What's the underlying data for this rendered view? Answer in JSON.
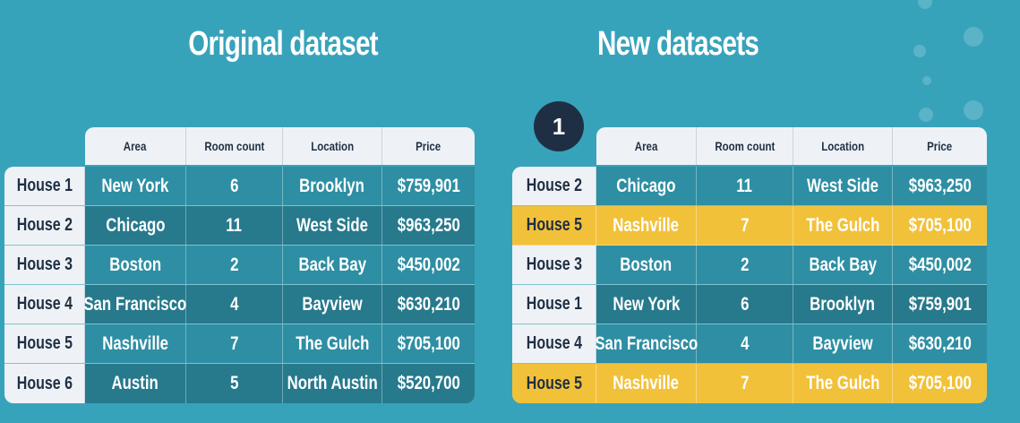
{
  "titles": {
    "left": "Original dataset",
    "right": "New datasets"
  },
  "badge": "1",
  "headers": [
    "Area",
    "Room count",
    "Location",
    "Price"
  ],
  "original": [
    {
      "label": "House 1",
      "area": "New York",
      "rooms": "6",
      "location": "Brooklyn",
      "price": "$759,901"
    },
    {
      "label": "House 2",
      "area": "Chicago",
      "rooms": "11",
      "location": "West Side",
      "price": "$963,250"
    },
    {
      "label": "House 3",
      "area": "Boston",
      "rooms": "2",
      "location": "Back Bay",
      "price": "$450,002"
    },
    {
      "label": "House 4",
      "area": "San Francisco",
      "rooms": "4",
      "location": "Bayview",
      "price": "$630,210"
    },
    {
      "label": "House 5",
      "area": "Nashville",
      "rooms": "7",
      "location": "The Gulch",
      "price": "$705,100"
    },
    {
      "label": "House 6",
      "area": "Austin",
      "rooms": "5",
      "location": "North Austin",
      "price": "$520,700"
    }
  ],
  "new": [
    {
      "label": "House 2",
      "area": "Chicago",
      "rooms": "11",
      "location": "West Side",
      "price": "$963,250",
      "highlight": false
    },
    {
      "label": "House 5",
      "area": "Nashville",
      "rooms": "7",
      "location": "The Gulch",
      "price": "$705,100",
      "highlight": true
    },
    {
      "label": "House 3",
      "area": "Boston",
      "rooms": "2",
      "location": "Back Bay",
      "price": "$450,002",
      "highlight": false
    },
    {
      "label": "House 1",
      "area": "New York",
      "rooms": "6",
      "location": "Brooklyn",
      "price": "$759,901",
      "highlight": false
    },
    {
      "label": "House 4",
      "area": "San Francisco",
      "rooms": "4",
      "location": "Bayview",
      "price": "$630,210",
      "highlight": false
    },
    {
      "label": "House 5",
      "area": "Nashville",
      "rooms": "7",
      "location": "The Gulch",
      "price": "$705,100",
      "highlight": true
    }
  ],
  "colors": {
    "background": "#37a3bb",
    "row_a": "#2e8ea3",
    "row_b": "#27798c",
    "highlight": "#f2c13a",
    "label_bg": "#eef2f6",
    "badge_bg": "#1f2f43"
  }
}
